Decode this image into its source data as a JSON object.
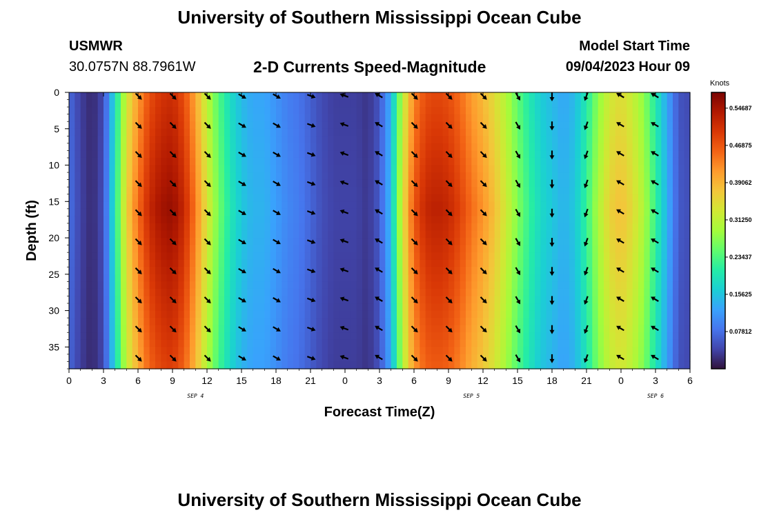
{
  "header": {
    "title": "University of Southern Mississippi Ocean Cube",
    "station": "USMWR",
    "coordinates": "30.0757N  88.7961W",
    "subtitle": "2-D Currents Speed-Magnitude",
    "model_start_label": "Model Start Time",
    "model_start_value": "09/04/2023 Hour 09"
  },
  "footer": {
    "title": "University of Southern Mississippi Ocean Cube"
  },
  "chart_data": {
    "type": "heatmap",
    "title": "2-D Currents Speed-Magnitude",
    "xlabel": "Forecast Time(Z)",
    "ylabel": "Depth (ft)",
    "x_range_hours": [
      0,
      54
    ],
    "y_range_ft": [
      0,
      38
    ],
    "x_tick_labels": [
      "0",
      "3",
      "6",
      "9",
      "12",
      "15",
      "18",
      "21",
      "0",
      "3",
      "6",
      "9",
      "12",
      "15",
      "18",
      "21",
      "0",
      "3",
      "6"
    ],
    "y_tick_labels": [
      "0",
      "5",
      "10",
      "15",
      "20",
      "25",
      "30",
      "35"
    ],
    "y_tick_values": [
      0,
      5,
      10,
      15,
      20,
      25,
      30,
      35
    ],
    "date_labels": [
      {
        "label": "SEP 4",
        "hour": 11
      },
      {
        "label": "SEP 5",
        "hour": 35
      },
      {
        "label": "SEP 6",
        "hour": 51
      }
    ],
    "colorbar": {
      "title": "Knots",
      "tick_labels": [
        "0.54687",
        "0.46875",
        "0.39062",
        "0.31250",
        "0.23437",
        "0.15625",
        "0.07812"
      ],
      "tick_values": [
        0.54687,
        0.46875,
        0.39062,
        0.3125,
        0.23437,
        0.15625,
        0.07812
      ],
      "range": [
        0,
        0.58
      ],
      "colors": [
        "#30123b",
        "#4145ab",
        "#4675ed",
        "#39a2fc",
        "#1bcfd4",
        "#24eca6",
        "#61fc6c",
        "#a4fc3b",
        "#d1e834",
        "#f3c63a",
        "#fe9b2d",
        "#f36315",
        "#d93806",
        "#b11901",
        "#7a0402"
      ]
    },
    "speed_profile_hours": [
      0,
      1,
      2,
      3,
      4,
      5,
      6,
      7,
      8,
      9,
      10,
      11,
      12,
      13,
      14,
      15,
      16,
      17,
      18,
      19,
      20,
      21,
      22,
      23,
      24,
      25,
      26,
      27,
      28,
      29,
      30,
      31,
      32,
      33,
      34,
      35,
      36,
      37,
      38,
      39,
      40,
      41,
      42,
      43,
      44,
      45,
      46,
      47,
      48,
      49,
      50,
      51,
      52,
      53,
      54
    ],
    "speed_profile_knots": [
      0.08,
      0.04,
      0.02,
      0.05,
      0.2,
      0.36,
      0.45,
      0.52,
      0.55,
      0.56,
      0.52,
      0.44,
      0.34,
      0.26,
      0.2,
      0.16,
      0.14,
      0.14,
      0.12,
      0.1,
      0.09,
      0.07,
      0.05,
      0.04,
      0.04,
      0.04,
      0.03,
      0.06,
      0.15,
      0.34,
      0.47,
      0.52,
      0.53,
      0.52,
      0.49,
      0.45,
      0.42,
      0.38,
      0.33,
      0.27,
      0.22,
      0.18,
      0.16,
      0.14,
      0.16,
      0.22,
      0.3,
      0.36,
      0.38,
      0.35,
      0.3,
      0.22,
      0.14,
      0.06,
      0.05
    ],
    "arrow_hours": [
      6,
      9,
      12,
      15,
      18,
      21,
      24,
      27,
      30,
      33,
      36,
      39,
      42,
      45,
      48,
      51
    ],
    "arrow_depths_ft": [
      0,
      4,
      8,
      12,
      16,
      20,
      24,
      28,
      32,
      36
    ],
    "arrow_directions_deg": [
      135,
      135,
      135,
      120,
      120,
      110,
      290,
      300,
      135,
      135,
      135,
      150,
      180,
      200,
      300,
      300
    ]
  }
}
